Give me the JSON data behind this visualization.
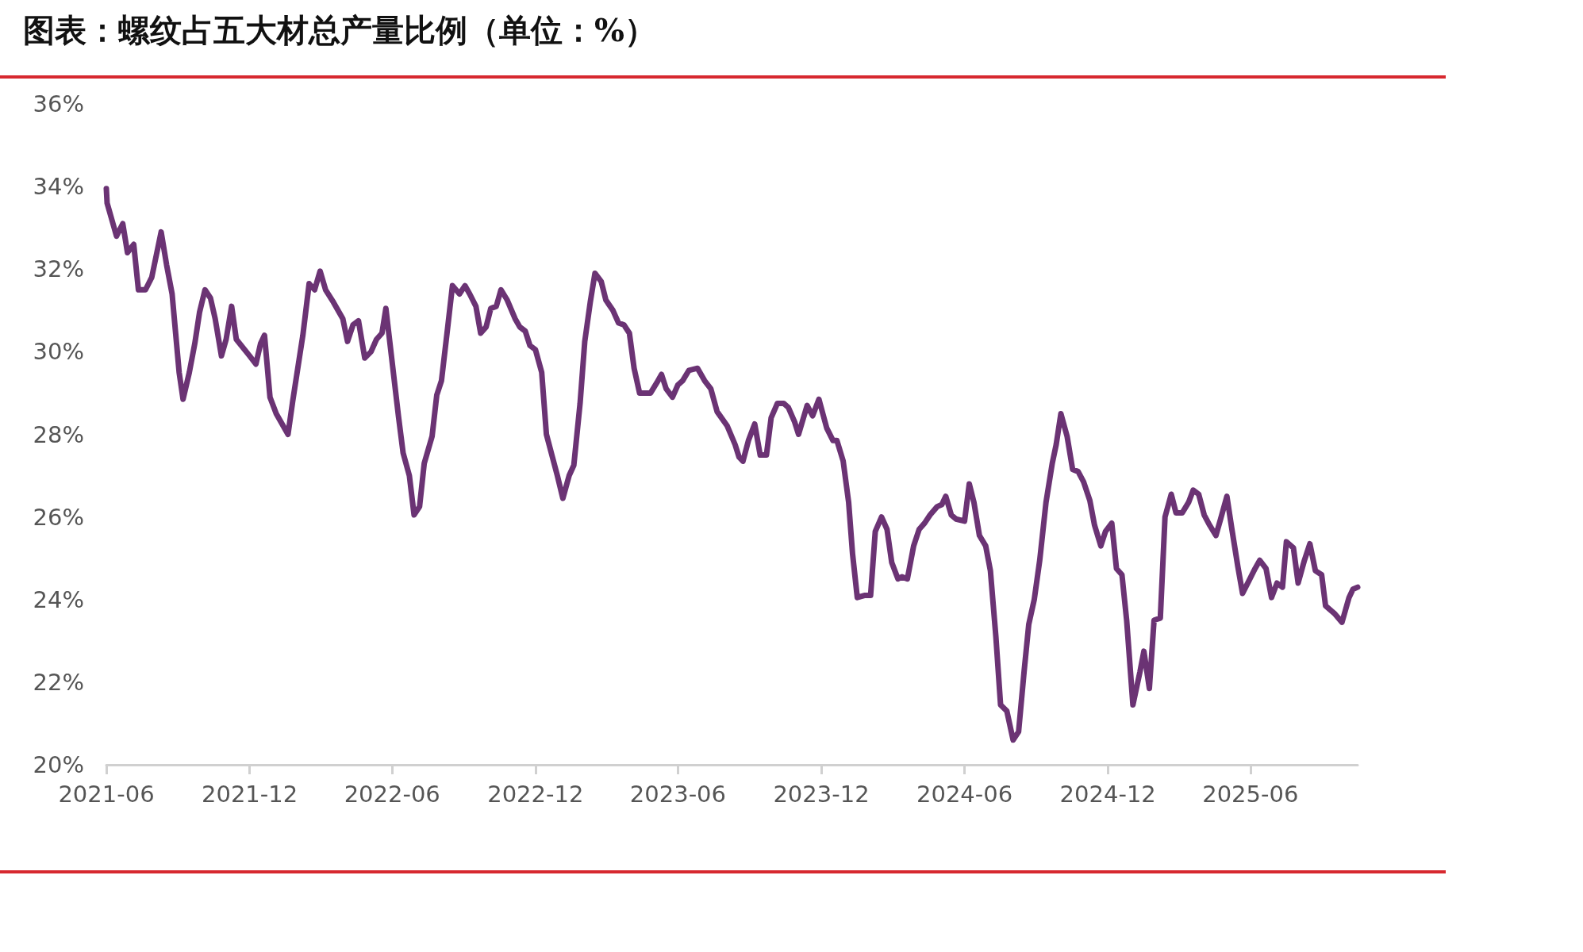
{
  "chart_data": {
    "type": "line",
    "title": "图表：螺纹占五大材总产量比例（单位：%）",
    "x": [
      "2021-06-01",
      "2021-06-02",
      "2021-06-14",
      "2021-06-22",
      "2021-06-28",
      "2021-07-06",
      "2021-07-12",
      "2021-07-21",
      "2021-07-29",
      "2021-08-10",
      "2021-08-17",
      "2021-08-24",
      "2021-09-02",
      "2021-09-07",
      "2021-09-15",
      "2021-09-22",
      "2021-09-28",
      "2021-10-05",
      "2021-10-12",
      "2021-10-18",
      "2021-10-26",
      "2021-11-01",
      "2021-11-08",
      "2021-11-14",
      "2021-12-01",
      "2021-12-09",
      "2021-12-15",
      "2021-12-20",
      "2021-12-27",
      "2022-01-04",
      "2022-01-19",
      "2022-01-25",
      "2022-02-07",
      "2022-02-15",
      "2022-02-22",
      "2022-03-01",
      "2022-03-08",
      "2022-03-18",
      "2022-03-30",
      "2022-04-05",
      "2022-04-12",
      "2022-04-19",
      "2022-04-27",
      "2022-05-05",
      "2022-05-12",
      "2022-05-19",
      "2022-05-24",
      "2022-06-09",
      "2022-06-15",
      "2022-06-23",
      "2022-06-29",
      "2022-07-06",
      "2022-07-12",
      "2022-07-22",
      "2022-07-28",
      "2022-08-03",
      "2022-08-11",
      "2022-08-17",
      "2022-08-26",
      "2022-09-02",
      "2022-09-08",
      "2022-09-16",
      "2022-09-22",
      "2022-09-29",
      "2022-10-05",
      "2022-10-12",
      "2022-10-18",
      "2022-10-26",
      "2022-11-05",
      "2022-11-11",
      "2022-11-18",
      "2022-11-24",
      "2022-12-01",
      "2022-12-09",
      "2022-12-15",
      "2022-12-22",
      "2022-12-29",
      "2023-01-05",
      "2023-01-13",
      "2023-01-19",
      "2023-01-27",
      "2023-02-02",
      "2023-02-09",
      "2023-02-15",
      "2023-02-23",
      "2023-03-01",
      "2023-03-10",
      "2023-03-17",
      "2023-03-24",
      "2023-03-31",
      "2023-04-06",
      "2023-04-13",
      "2023-04-27",
      "2023-05-05",
      "2023-05-11",
      "2023-05-17",
      "2023-05-25",
      "2023-06-01",
      "2023-06-07",
      "2023-06-15",
      "2023-06-26",
      "2023-07-05",
      "2023-07-13",
      "2023-07-21",
      "2023-08-03",
      "2023-08-13",
      "2023-08-18",
      "2023-08-23",
      "2023-08-30",
      "2023-09-07",
      "2023-09-14",
      "2023-09-22",
      "2023-09-28",
      "2023-10-06",
      "2023-10-14",
      "2023-10-20",
      "2023-10-28",
      "2023-11-02",
      "2023-11-13",
      "2023-11-20",
      "2023-11-28",
      "2023-12-08",
      "2023-12-16",
      "2023-12-21",
      "2023-12-29",
      "2024-01-05",
      "2024-01-10",
      "2024-01-16",
      "2024-01-25",
      "2024-02-02",
      "2024-02-08",
      "2024-02-16",
      "2024-02-23",
      "2024-02-29",
      "2024-03-08",
      "2024-03-13",
      "2024-03-20",
      "2024-03-28",
      "2024-04-04",
      "2024-04-11",
      "2024-04-18",
      "2024-04-27",
      "2024-05-03",
      "2024-05-08",
      "2024-05-15",
      "2024-05-21",
      "2024-06-01",
      "2024-06-07",
      "2024-06-13",
      "2024-06-20",
      "2024-06-28",
      "2024-07-04",
      "2024-07-11",
      "2024-07-17",
      "2024-07-25",
      "2024-08-02",
      "2024-08-09",
      "2024-08-16",
      "2024-08-22",
      "2024-08-29",
      "2024-09-05",
      "2024-09-13",
      "2024-09-21",
      "2024-09-26",
      "2024-10-02",
      "2024-10-10",
      "2024-10-17",
      "2024-10-24",
      "2024-10-31",
      "2024-11-08",
      "2024-11-14",
      "2024-11-22",
      "2024-11-28",
      "2024-12-06",
      "2024-12-12",
      "2024-12-19",
      "2024-12-25",
      "2025-01-02",
      "2025-01-11",
      "2025-01-16",
      "2025-01-23",
      "2025-01-29",
      "2025-02-06",
      "2025-02-12",
      "2025-02-20",
      "2025-02-26",
      "2025-03-06",
      "2025-03-14",
      "2025-03-20",
      "2025-03-27",
      "2025-04-03",
      "2025-04-10",
      "2025-04-18",
      "2025-04-24",
      "2025-05-02",
      "2025-05-08",
      "2025-05-16",
      "2025-05-22",
      "2025-05-30",
      "2025-06-07",
      "2025-06-13",
      "2025-06-21",
      "2025-06-28",
      "2025-07-05",
      "2025-07-12",
      "2025-07-17",
      "2025-07-26",
      "2025-08-01",
      "2025-08-09",
      "2025-08-16",
      "2025-08-23",
      "2025-08-31",
      "2025-09-05",
      "2025-09-17",
      "2025-09-26",
      "2025-10-05",
      "2025-10-10",
      "2025-10-16"
    ],
    "series": [
      {
        "color": "#6b3374",
        "values": [
          33.95,
          33.6,
          32.8,
          33.1,
          32.4,
          32.6,
          31.5,
          31.5,
          31.8,
          32.9,
          32.1,
          31.4,
          29.5,
          28.85,
          29.5,
          30.2,
          30.95,
          31.5,
          31.3,
          30.8,
          29.9,
          30.3,
          31.1,
          30.3,
          29.9,
          29.7,
          30.2,
          30.4,
          28.9,
          28.5,
          28.0,
          28.8,
          30.4,
          31.65,
          31.5,
          31.95,
          31.5,
          31.2,
          30.8,
          30.25,
          30.65,
          30.75,
          29.85,
          30.0,
          30.3,
          30.45,
          31.05,
          28.45,
          27.55,
          27.0,
          26.05,
          26.25,
          27.3,
          27.95,
          28.95,
          29.3,
          30.6,
          31.6,
          31.4,
          31.6,
          31.4,
          31.1,
          30.45,
          30.6,
          31.05,
          31.1,
          31.5,
          31.25,
          30.8,
          30.6,
          30.5,
          30.15,
          30.05,
          29.5,
          28.0,
          27.5,
          27.0,
          26.45,
          27.0,
          27.25,
          28.75,
          30.25,
          31.2,
          31.9,
          31.7,
          31.25,
          31.0,
          30.7,
          30.65,
          30.45,
          29.6,
          29.0,
          29.0,
          29.25,
          29.45,
          29.1,
          28.9,
          29.2,
          29.3,
          29.55,
          29.6,
          29.3,
          29.1,
          28.55,
          28.2,
          27.75,
          27.45,
          27.35,
          27.85,
          28.25,
          27.5,
          27.5,
          28.4,
          28.75,
          28.75,
          28.65,
          28.3,
          28.0,
          28.7,
          28.45,
          28.85,
          28.15,
          27.85,
          27.85,
          27.35,
          26.35,
          25.1,
          24.05,
          24.1,
          24.1,
          25.65,
          26.0,
          25.7,
          24.9,
          24.5,
          24.55,
          24.5,
          25.3,
          25.7,
          25.85,
          26.05,
          26.25,
          26.3,
          26.5,
          26.05,
          25.95,
          25.9,
          26.8,
          26.35,
          25.55,
          25.3,
          24.7,
          23.1,
          21.45,
          21.3,
          20.6,
          20.8,
          22.25,
          23.4,
          24.0,
          24.95,
          26.35,
          27.3,
          27.75,
          28.5,
          27.95,
          27.15,
          27.1,
          26.85,
          26.4,
          25.8,
          25.3,
          25.65,
          25.85,
          24.75,
          24.6,
          23.5,
          21.45,
          22.25,
          22.75,
          21.85,
          23.5,
          23.55,
          26.0,
          26.55,
          26.1,
          26.1,
          26.35,
          26.65,
          26.55,
          26.05,
          25.8,
          25.55,
          25.95,
          26.5,
          25.75,
          24.8,
          24.15,
          24.45,
          24.75,
          24.95,
          24.75,
          24.05,
          24.4,
          24.3,
          25.4,
          25.25,
          24.4,
          24.95,
          25.35,
          24.7,
          24.6,
          23.85,
          23.65,
          23.45,
          24.05,
          24.25,
          24.3
        ]
      }
    ],
    "xlim": [
      "2021-06-01",
      "2025-10-16"
    ],
    "xticks": [
      {
        "value": "2021-06-01",
        "label": "2021-06"
      },
      {
        "value": "2021-12-01",
        "label": "2021-12"
      },
      {
        "value": "2022-06-01",
        "label": "2022-06"
      },
      {
        "value": "2022-12-01",
        "label": "2022-12"
      },
      {
        "value": "2023-06-01",
        "label": "2023-06"
      },
      {
        "value": "2023-12-01",
        "label": "2023-12"
      },
      {
        "value": "2024-06-01",
        "label": "2024-06"
      },
      {
        "value": "2024-12-01",
        "label": "2024-12"
      },
      {
        "value": "2025-06-01",
        "label": "2025-06"
      }
    ],
    "ylim": [
      20,
      36
    ],
    "yticks": [
      {
        "value": 20,
        "label": "20%"
      },
      {
        "value": 22,
        "label": "22%"
      },
      {
        "value": 24,
        "label": "24%"
      },
      {
        "value": 26,
        "label": "26%"
      },
      {
        "value": 28,
        "label": "28%"
      },
      {
        "value": 30,
        "label": "30%"
      },
      {
        "value": 32,
        "label": "32%"
      },
      {
        "value": 34,
        "label": "34%"
      },
      {
        "value": 36,
        "label": "36%"
      }
    ],
    "grid": false,
    "marker": "none",
    "line_style": "solid"
  }
}
